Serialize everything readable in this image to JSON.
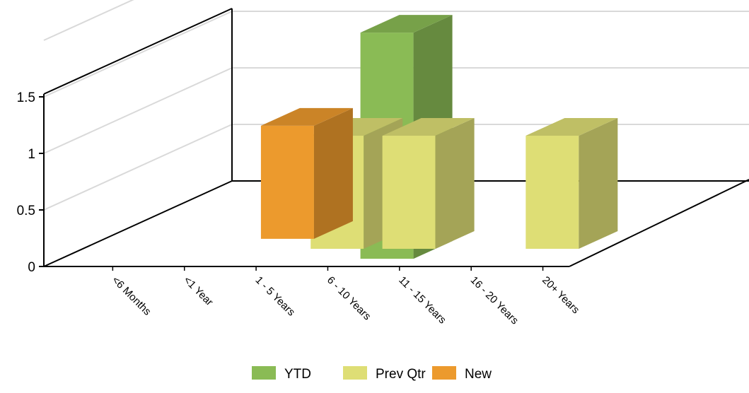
{
  "chart_data": {
    "type": "bar",
    "style": "3d-depth",
    "categories": [
      "<6 Months",
      "<1 Year",
      "1 - 5 Years",
      "6 - 10 Years",
      "11 - 15 Years",
      "16 - 20 Years",
      "20+ Years"
    ],
    "series": [
      {
        "name": "YTD",
        "color": "#8abb55",
        "values": [
          null,
          null,
          null,
          null,
          2,
          null,
          null
        ]
      },
      {
        "name": "Prev Qtr",
        "color": "#dede75",
        "values": [
          null,
          null,
          null,
          1,
          1,
          null,
          1
        ]
      },
      {
        "name": "New",
        "color": "#ec9a2d",
        "values": [
          null,
          null,
          1,
          null,
          null,
          null,
          null
        ]
      }
    ],
    "y_ticks": [
      "0",
      "0.5",
      "1",
      "1.5"
    ],
    "ylim": [
      0,
      2
    ],
    "grid": true,
    "legend_position": "bottom-center"
  }
}
